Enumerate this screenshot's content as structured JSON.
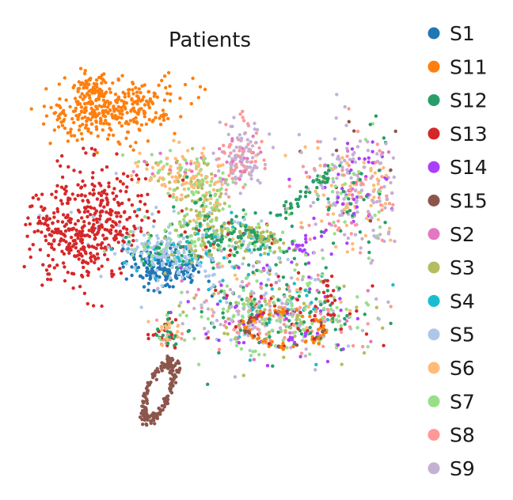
{
  "chart_data": {
    "type": "scatter",
    "title": "Patients",
    "xlabel": "",
    "ylabel": "",
    "grid": false,
    "axes_visible": false,
    "legend_placement": "right",
    "series": [
      {
        "name": "S1",
        "color": "#1f77b4"
      },
      {
        "name": "S11",
        "color": "#ff7f0e"
      },
      {
        "name": "S12",
        "color": "#279e68"
      },
      {
        "name": "S13",
        "color": "#d62728"
      },
      {
        "name": "S14",
        "color": "#aa40fc"
      },
      {
        "name": "S15",
        "color": "#8c564b"
      },
      {
        "name": "S2",
        "color": "#e377c2"
      },
      {
        "name": "S3",
        "color": "#b5bd61"
      },
      {
        "name": "S4",
        "color": "#17becf"
      },
      {
        "name": "S5",
        "color": "#aec7e8"
      },
      {
        "name": "S6",
        "color": "#ffbb78"
      },
      {
        "name": "S7",
        "color": "#98df8a"
      },
      {
        "name": "S8",
        "color": "#ff9896"
      },
      {
        "name": "S9",
        "color": "#c5b0d5"
      }
    ]
  }
}
